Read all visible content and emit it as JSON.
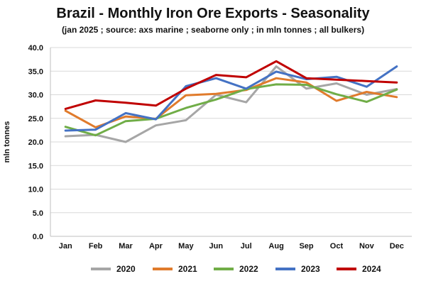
{
  "chart_data": {
    "type": "line",
    "title": "Brazil - Monthly Iron Ore Exports - Seasonality",
    "subtitle": "(jan 2025 ; source: axs marine ; seaborne only ; in mln tonnes ; all bulkers)",
    "xlabel": "",
    "ylabel": "mln tonnes",
    "categories": [
      "Jan",
      "Feb",
      "Mar",
      "Apr",
      "May",
      "Jun",
      "Jul",
      "Aug",
      "Sep",
      "Oct",
      "Nov",
      "Dec"
    ],
    "ylim": [
      0,
      40
    ],
    "yticks": [
      "0.0",
      "5.0",
      "10.0",
      "15.0",
      "20.0",
      "25.0",
      "30.0",
      "35.0",
      "40.0"
    ],
    "grid": true,
    "legend_position": "bottom",
    "series": [
      {
        "name": "2020",
        "color": "#a6a6a6",
        "values": [
          21.2,
          21.5,
          20.0,
          23.5,
          24.6,
          30.0,
          28.4,
          36.0,
          31.3,
          32.4,
          30.0,
          31.2
        ]
      },
      {
        "name": "2021",
        "color": "#e07b2c",
        "values": [
          26.6,
          23.1,
          25.4,
          24.9,
          29.9,
          30.2,
          31.0,
          33.5,
          32.6,
          28.7,
          30.6,
          29.5
        ]
      },
      {
        "name": "2022",
        "color": "#70ad47",
        "values": [
          23.2,
          21.4,
          24.4,
          24.9,
          27.2,
          29.0,
          31.2,
          32.2,
          32.1,
          30.1,
          28.5,
          31.1
        ]
      },
      {
        "name": "2023",
        "color": "#4472c4",
        "values": [
          22.4,
          22.6,
          26.1,
          24.8,
          31.8,
          33.5,
          31.3,
          34.9,
          33.3,
          33.8,
          31.7,
          36.0
        ]
      },
      {
        "name": "2024",
        "color": "#c00000",
        "values": [
          27.0,
          28.8,
          28.3,
          27.7,
          31.3,
          34.2,
          33.7,
          37.1,
          33.5,
          33.2,
          32.9,
          32.6
        ]
      }
    ]
  }
}
